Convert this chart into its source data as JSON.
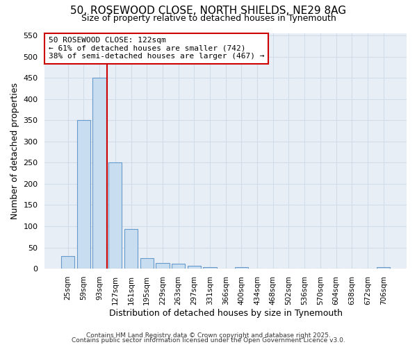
{
  "title1": "50, ROSEWOOD CLOSE, NORTH SHIELDS, NE29 8AG",
  "title2": "Size of property relative to detached houses in Tynemouth",
  "xlabel": "Distribution of detached houses by size in Tynemouth",
  "ylabel": "Number of detached properties",
  "categories": [
    "25sqm",
    "59sqm",
    "93sqm",
    "127sqm",
    "161sqm",
    "195sqm",
    "229sqm",
    "263sqm",
    "297sqm",
    "331sqm",
    "366sqm",
    "400sqm",
    "434sqm",
    "468sqm",
    "502sqm",
    "536sqm",
    "570sqm",
    "604sqm",
    "638sqm",
    "672sqm",
    "706sqm"
  ],
  "values": [
    30,
    350,
    450,
    250,
    93,
    25,
    14,
    11,
    6,
    4,
    0,
    3,
    0,
    0,
    0,
    0,
    0,
    0,
    0,
    0,
    3
  ],
  "bar_color": "#c8ddf0",
  "bar_edge_color": "#6699cc",
  "grid_color": "#d0dde8",
  "annotation_title": "50 ROSEWOOD CLOSE: 122sqm",
  "annotation_line1": "← 61% of detached houses are smaller (742)",
  "annotation_line2": "38% of semi-detached houses are larger (467) →",
  "annotation_box_facecolor": "#ffffff",
  "annotation_box_edgecolor": "#cc0000",
  "redline_color": "#cc0000",
  "ylim": [
    0,
    555
  ],
  "yticks": [
    0,
    50,
    100,
    150,
    200,
    250,
    300,
    350,
    400,
    450,
    500,
    550
  ],
  "footer1": "Contains HM Land Registry data © Crown copyright and database right 2025.",
  "footer2": "Contains public sector information licensed under the Open Government Licence v3.0.",
  "bg_color": "#ffffff",
  "plot_bg_color": "#e8eef5"
}
